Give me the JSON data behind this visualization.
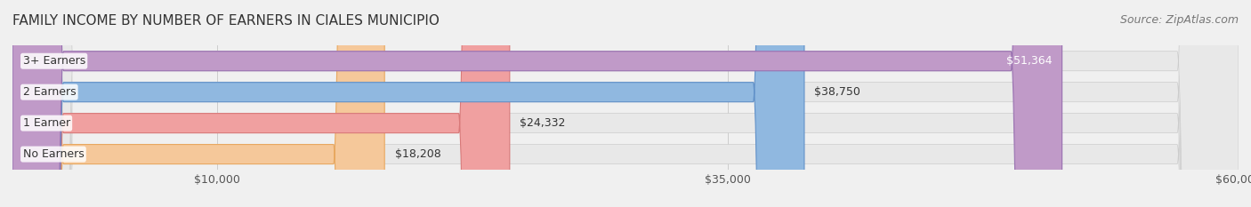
{
  "title": "FAMILY INCOME BY NUMBER OF EARNERS IN CIALES MUNICIPIO",
  "source": "Source: ZipAtlas.com",
  "categories": [
    "No Earners",
    "1 Earner",
    "2 Earners",
    "3+ Earners"
  ],
  "values": [
    18208,
    24332,
    38750,
    51364
  ],
  "bar_colors": [
    "#f5c89a",
    "#f0a0a0",
    "#90b8e0",
    "#c09ac8"
  ],
  "bar_edge_colors": [
    "#e8a860",
    "#d87878",
    "#6090c8",
    "#9870b0"
  ],
  "label_colors": [
    "#333333",
    "#333333",
    "#333333",
    "#ffffff"
  ],
  "value_labels": [
    "$18,208",
    "$24,332",
    "$38,750",
    "$51,364"
  ],
  "xlim": [
    0,
    60000
  ],
  "xticks": [
    10000,
    35000,
    60000
  ],
  "xtick_labels": [
    "$10,000",
    "$35,000",
    "$60,000"
  ],
  "background_color": "#f0f0f0",
  "bar_background_color": "#e8e8e8",
  "title_fontsize": 11,
  "source_fontsize": 9,
  "tick_fontsize": 9,
  "bar_label_fontsize": 9,
  "bar_height": 0.62,
  "figsize": [
    14.06,
    2.33
  ],
  "dpi": 100
}
